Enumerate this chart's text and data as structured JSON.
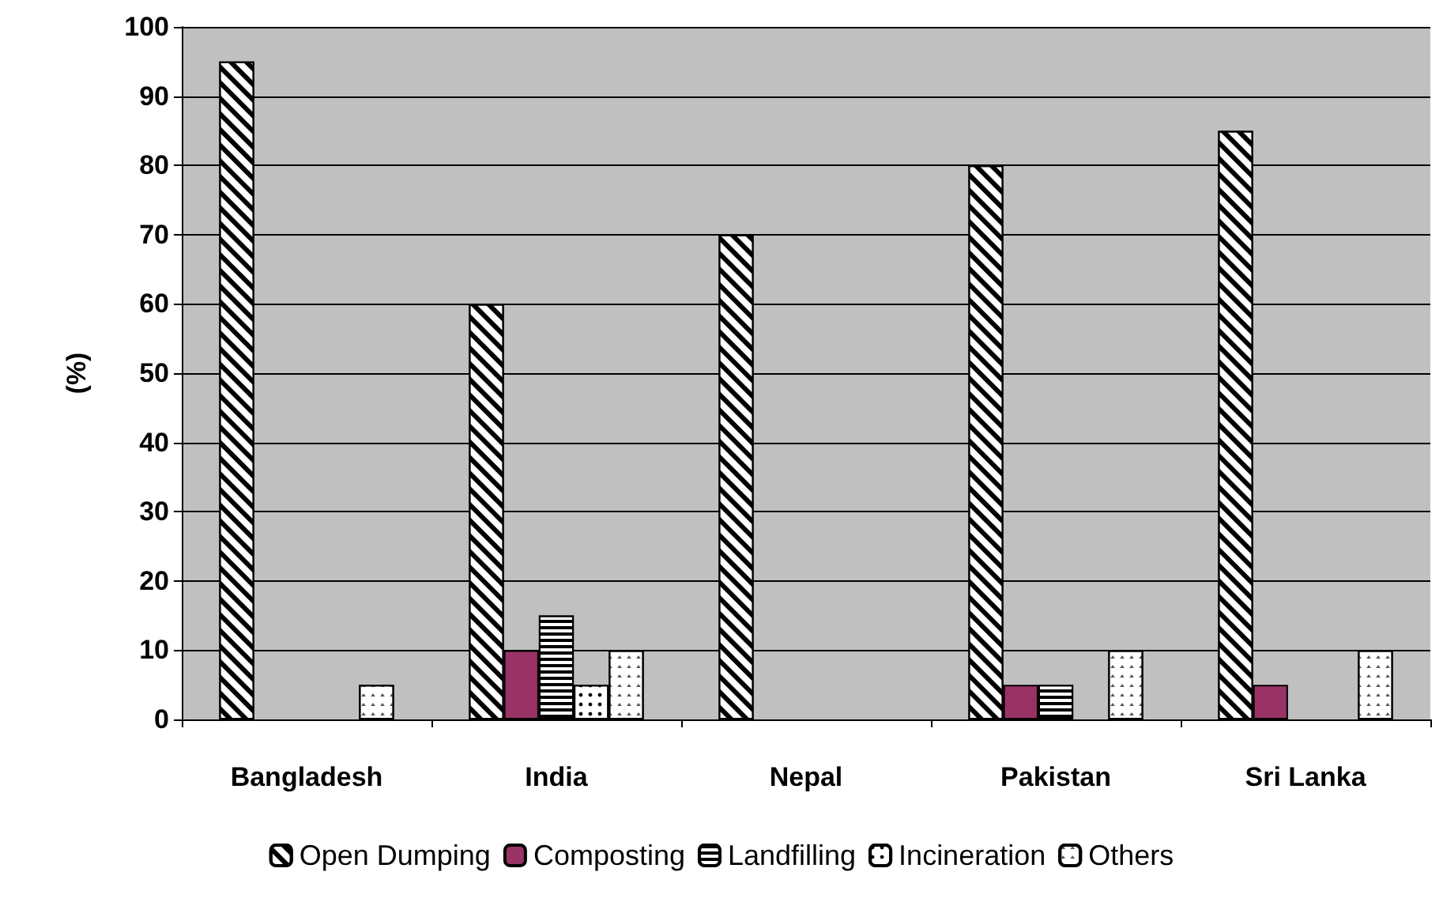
{
  "chart_data": {
    "type": "bar",
    "ylabel": "(%)",
    "categories": [
      "Bangladesh",
      "India",
      "Nepal",
      "Pakistan",
      "Sri Lanka"
    ],
    "series": [
      {
        "name": "Open Dumping",
        "color": "#ffffff",
        "values": [
          95,
          60,
          70,
          80,
          85
        ]
      },
      {
        "name": "Composting",
        "color": "#993366",
        "values": [
          null,
          10,
          null,
          5,
          5
        ]
      },
      {
        "name": "Landfilling",
        "color": "#ffffff",
        "values": [
          null,
          15,
          null,
          5,
          null
        ]
      },
      {
        "name": "Incineration",
        "color": "#ffffff",
        "values": [
          null,
          5,
          null,
          null,
          null
        ]
      },
      {
        "name": "Others",
        "color": "#ffffff",
        "values": [
          5,
          10,
          null,
          10,
          10
        ]
      }
    ],
    "ylim": [
      0,
      100
    ],
    "yticks": [
      0,
      10,
      20,
      30,
      40,
      50,
      60,
      70,
      80,
      90,
      100
    ],
    "grid": "y",
    "legend": "bottom"
  }
}
